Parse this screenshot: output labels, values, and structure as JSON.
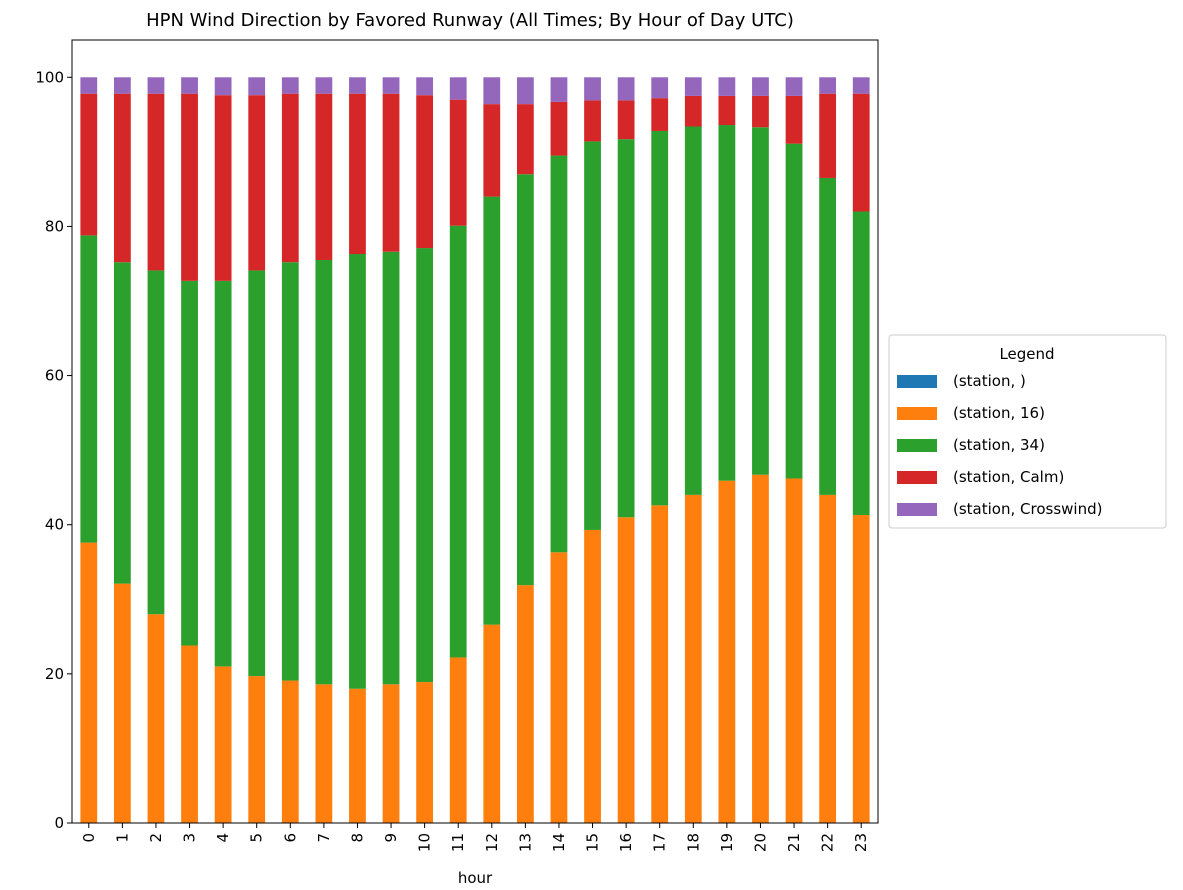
{
  "chart_data": {
    "type": "stacked_bar",
    "title": "HPN Wind Direction by Favored Runway (All Times; By Hour of Day UTC)",
    "x_label": "hour",
    "legend_title": "Legend",
    "legend_position": "right",
    "categories": [
      "0",
      "1",
      "2",
      "3",
      "4",
      "5",
      "6",
      "7",
      "8",
      "9",
      "10",
      "11",
      "12",
      "13",
      "14",
      "15",
      "16",
      "17",
      "18",
      "19",
      "20",
      "21",
      "22",
      "23"
    ],
    "series": [
      {
        "name": "(station, )",
        "color": "#1f77b4",
        "values": [
          0,
          0,
          0,
          0,
          0,
          0,
          0,
          0,
          0,
          0,
          0,
          0,
          0,
          0,
          0,
          0,
          0,
          0,
          0,
          0,
          0,
          0,
          0,
          0
        ]
      },
      {
        "name": "(station, 16)",
        "color": "#ff7f0e",
        "values": [
          37.6,
          32.1,
          28,
          23.8,
          21,
          19.7,
          19.1,
          18.6,
          18,
          18.6,
          18.9,
          22.2,
          26.6,
          31.9,
          36.3,
          39.3,
          41,
          42.6,
          44,
          45.9,
          46.7,
          46.2,
          44,
          41.3
        ]
      },
      {
        "name": "(station, 34)",
        "color": "#2ca02c",
        "values": [
          41.2,
          43.1,
          46.1,
          48.9,
          51.7,
          54.4,
          56.1,
          56.9,
          58.3,
          58,
          58.2,
          57.9,
          57.4,
          55.1,
          53.2,
          52.1,
          50.7,
          50.2,
          49.4,
          47.7,
          46.6,
          44.9,
          42.5,
          40.7
        ]
      },
      {
        "name": "(station, Calm)",
        "color": "#d62728",
        "values": [
          19,
          22.6,
          23.7,
          25.1,
          24.9,
          23.5,
          22.6,
          22.3,
          21.5,
          21.2,
          20.5,
          16.9,
          12.4,
          9.4,
          7.2,
          5.5,
          5.2,
          4.4,
          4.1,
          3.9,
          4.2,
          6.4,
          11.3,
          15.8
        ]
      },
      {
        "name": "(station, Crosswind)",
        "color": "#9467bd",
        "values": [
          2.2,
          2.2,
          2.2,
          2.2,
          2.4,
          2.4,
          2.2,
          2.2,
          2.2,
          2.2,
          2.4,
          3,
          3.6,
          3.6,
          3.3,
          3.1,
          3.1,
          2.8,
          2.5,
          2.5,
          2.5,
          2.5,
          2.2,
          2.2
        ]
      }
    ],
    "ylim": [
      0,
      105
    ],
    "yticks": [
      0,
      20,
      40,
      60,
      80,
      100
    ],
    "grid": false
  }
}
